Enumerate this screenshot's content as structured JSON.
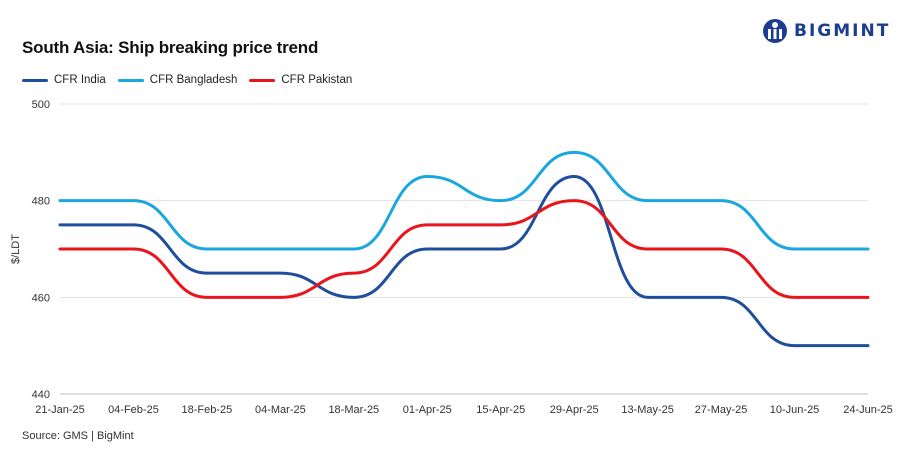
{
  "header": {
    "title": "South Asia: Ship breaking  price trend",
    "logo_text": "BIGMINT"
  },
  "footer": {
    "source": "Source: GMS | BigMint"
  },
  "icons": {
    "logo": "bigmint-logo-icon"
  },
  "chart_data": {
    "type": "line",
    "title": "South Asia: Ship breaking  price trend",
    "ylabel": "$/LDT",
    "xlabel": "",
    "ylim": [
      440,
      500
    ],
    "yticks": [
      440,
      460,
      480,
      500
    ],
    "grid": "horizontal",
    "legend": "top-left",
    "x": [
      "21-Jan-25",
      "04-Feb-25",
      "18-Feb-25",
      "04-Mar-25",
      "18-Mar-25",
      "01-Apr-25",
      "15-Apr-25",
      "29-Apr-25",
      "13-May-25",
      "27-May-25",
      "10-Jun-25",
      "24-Jun-25"
    ],
    "series": [
      {
        "name": "CFR India",
        "color": "#1f4e9c",
        "values": [
          475,
          475,
          465,
          465,
          460,
          470,
          470,
          485,
          460,
          460,
          450,
          450
        ]
      },
      {
        "name": "CFR Bangladesh",
        "color": "#1aa7e0",
        "values": [
          480,
          480,
          470,
          470,
          470,
          485,
          480,
          490,
          480,
          480,
          470,
          470
        ]
      },
      {
        "name": "CFR Pakistan",
        "color": "#e8151c",
        "values": [
          470,
          470,
          460,
          460,
          465,
          475,
          475,
          480,
          470,
          470,
          460,
          460
        ]
      }
    ]
  }
}
